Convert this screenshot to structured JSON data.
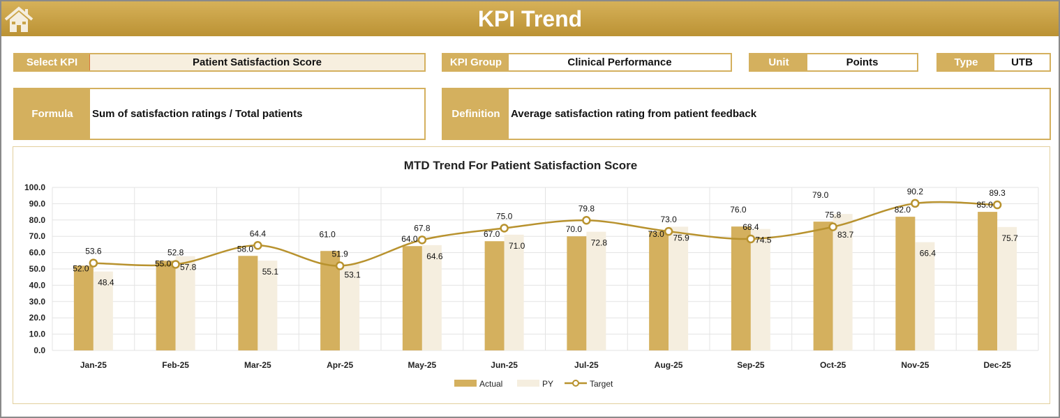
{
  "header": {
    "title": "KPI Trend",
    "home_icon": "home-icon"
  },
  "fields": {
    "select_kpi_label": "Select KPI",
    "select_kpi_value": "Patient Satisfaction Score",
    "kpi_group_label": "KPI Group",
    "kpi_group_value": "Clinical Performance",
    "unit_label": "Unit",
    "unit_value": "Points",
    "type_label": "Type",
    "type_value": "UTB",
    "formula_label": "Formula",
    "formula_value": "Sum of satisfaction ratings / Total patients",
    "definition_label": "Definition",
    "definition_value": "Average satisfaction rating from patient feedback"
  },
  "colors": {
    "accent": "#d4b05e",
    "actual": "#d4b05e",
    "py": "#f5eedf",
    "target": "#b8922e"
  },
  "chart_data": {
    "type": "bar",
    "title": "MTD Trend For Patient Satisfaction Score",
    "categories": [
      "Jan-25",
      "Feb-25",
      "Mar-25",
      "Apr-25",
      "May-25",
      "Jun-25",
      "Jul-25",
      "Aug-25",
      "Sep-25",
      "Oct-25",
      "Nov-25",
      "Dec-25"
    ],
    "ylim": [
      0,
      100
    ],
    "yticks": [
      "0.0",
      "10.0",
      "20.0",
      "30.0",
      "40.0",
      "50.0",
      "60.0",
      "70.0",
      "80.0",
      "90.0",
      "100.0"
    ],
    "grid": true,
    "legend": "bottom",
    "series": [
      {
        "name": "Actual",
        "type": "bar",
        "values": [
          52.0,
          55.0,
          58.0,
          61.0,
          64.0,
          67.0,
          70.0,
          73.0,
          76.0,
          79.0,
          82.0,
          85.0
        ]
      },
      {
        "name": "PY",
        "type": "bar",
        "values": [
          48.4,
          57.8,
          55.1,
          53.1,
          64.6,
          71.0,
          72.8,
          75.9,
          74.5,
          83.7,
          66.4,
          75.7
        ]
      },
      {
        "name": "Target",
        "type": "line",
        "values": [
          53.6,
          52.8,
          64.4,
          51.9,
          67.8,
          75.0,
          79.8,
          73.0,
          68.4,
          75.8,
          90.2,
          89.3
        ]
      }
    ]
  }
}
